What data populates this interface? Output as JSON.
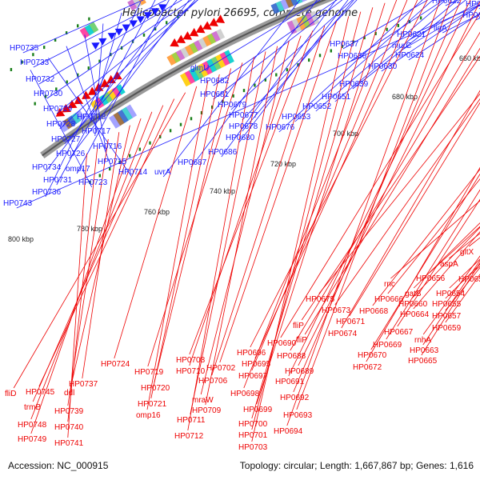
{
  "title": "Helicobacter pylori 26695, complete genome",
  "footer": {
    "accession": "Accession: NC_000915",
    "summary": "Topology: circular; Length: 1,667,867 bp; Genes: 1,616"
  },
  "colors": {
    "forward": "#1a1aff",
    "reverse": "#ee0000",
    "backbone": "#7a7a7a",
    "ticks": "#1a7f1a"
  },
  "kbp_labels": [
    "660 kbp",
    "680 kbp",
    "700 kbp",
    "720 kbp",
    "740 kbp",
    "760 kbp",
    "780 kbp",
    "800 kbp"
  ],
  "forward_labels": [
    "HP0613",
    "HP0614",
    "ligA",
    "HP0622",
    "HP0621",
    "murC",
    "HP0624",
    "HP0630",
    "HP0637",
    "HP0636",
    "HP0639",
    "HP0651",
    "HP0652",
    "HP0653",
    "HP0676",
    "glmU",
    "HP0682",
    "HP0681",
    "HP0679",
    "HP0677",
    "HP0678",
    "HP0680",
    "HP0686",
    "HP0687",
    "uvrA",
    "HP0735",
    "HP0733",
    "HP0732",
    "HP0730",
    "HP0729",
    "HP0728",
    "HP0727",
    "HP0726",
    "HP0734",
    "omp17",
    "HP0731",
    "HP0736",
    "HP0718",
    "HP0717",
    "HP0716",
    "HP0715",
    "HP0714",
    "HP0723",
    "HP0743"
  ],
  "reverse_labels": [
    "gltX",
    "aspA",
    "HP0650",
    "HP0654",
    "HP0655",
    "HP0656",
    "rnc",
    "gatB",
    "HP0660",
    "HP0657",
    "HP0664",
    "HP0659",
    "rnhA",
    "HP0663",
    "HP0665",
    "HP0666",
    "HP0668",
    "HP0667",
    "HP0669",
    "HP0670",
    "HP0672",
    "HP0675",
    "HP0673",
    "HP0671",
    "HP0674",
    "fliP",
    "fliP",
    "HP0688",
    "HP0690",
    "HP0689",
    "HP0691",
    "HP0692",
    "HP0693",
    "HP0694",
    "HP0696",
    "HP0695",
    "HP0697",
    "HP0698",
    "HP0699",
    "HP0700",
    "HP0701",
    "HP0703",
    "HP0702",
    "HP0706",
    "HP0708",
    "HP0710",
    "mraW",
    "HP0709",
    "HP0711",
    "HP0712",
    "HP0719",
    "HP0720",
    "HP0721",
    "omp16",
    "HP0724",
    "fliD",
    "HP0745",
    "trmB",
    "HP0748",
    "HP0749",
    "ddl",
    "HP0737",
    "HP0739",
    "HP0740",
    "HP0741"
  ]
}
